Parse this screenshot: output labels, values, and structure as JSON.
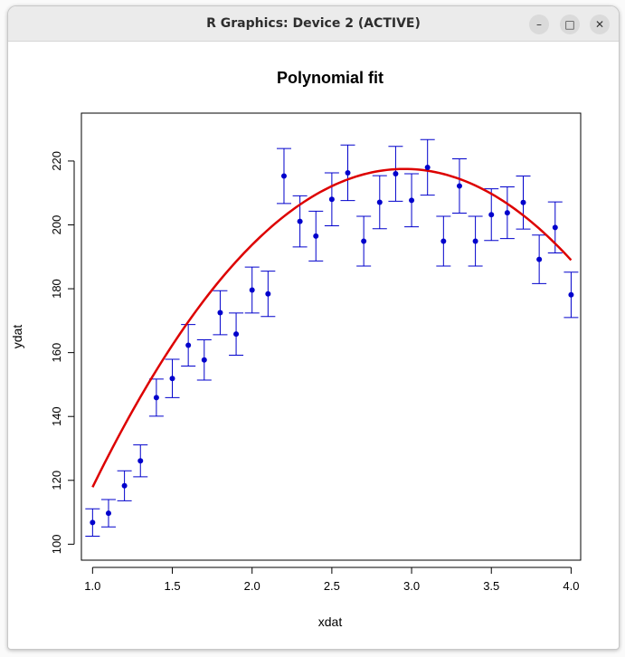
{
  "window": {
    "title": "R Graphics: Device 2 (ACTIVE)",
    "buttons": {
      "minimize_icon": "minimize-icon",
      "maximize_icon": "maximize-icon",
      "close_icon": "close-icon"
    }
  },
  "chart_data": {
    "type": "scatter",
    "title": "Polynomial fit",
    "xlabel": "xdat",
    "ylabel": "ydat",
    "xlim": [
      0.93,
      4.06
    ],
    "ylim": [
      95,
      235
    ],
    "xticks": [
      "1.0",
      "1.5",
      "2.0",
      "2.5",
      "3.0",
      "3.5",
      "4.0"
    ],
    "yticks": [
      "100",
      "120",
      "140",
      "160",
      "180",
      "200",
      "220"
    ],
    "grid": false,
    "points": {
      "color": "#0000cc",
      "x": [
        1.0,
        1.1,
        1.2,
        1.3,
        1.4,
        1.5,
        1.6,
        1.7,
        1.8,
        1.9,
        2.0,
        2.1,
        2.2,
        2.3,
        2.4,
        2.5,
        2.6,
        2.7,
        2.8,
        2.9,
        3.0,
        3.1,
        3.2,
        3.3,
        3.4,
        3.5,
        3.6,
        3.7,
        3.8,
        3.9,
        4.0
      ],
      "y": [
        106.8,
        109.7,
        118.3,
        126.1,
        145.9,
        151.9,
        162.3,
        157.7,
        172.5,
        165.8,
        179.6,
        178.4,
        215.3,
        201.1,
        196.5,
        208.0,
        216.3,
        194.9,
        207.1,
        216.0,
        207.7,
        218.0,
        194.9,
        212.2,
        194.9,
        203.2,
        203.8,
        207.0,
        189.2,
        199.2,
        178.1
      ],
      "error": [
        4.3,
        4.3,
        4.7,
        5.0,
        5.8,
        6.0,
        6.5,
        6.3,
        6.9,
        6.6,
        7.2,
        7.1,
        8.6,
        8.0,
        7.8,
        8.3,
        8.7,
        7.8,
        8.3,
        8.6,
        8.3,
        8.7,
        7.8,
        8.5,
        7.8,
        8.1,
        8.1,
        8.3,
        7.6,
        8.0,
        7.1
      ]
    },
    "fit_line": {
      "color": "#dd0000",
      "type": "line",
      "coefficients": [
        -10.24,
        154.2,
        -26.1
      ]
    }
  }
}
